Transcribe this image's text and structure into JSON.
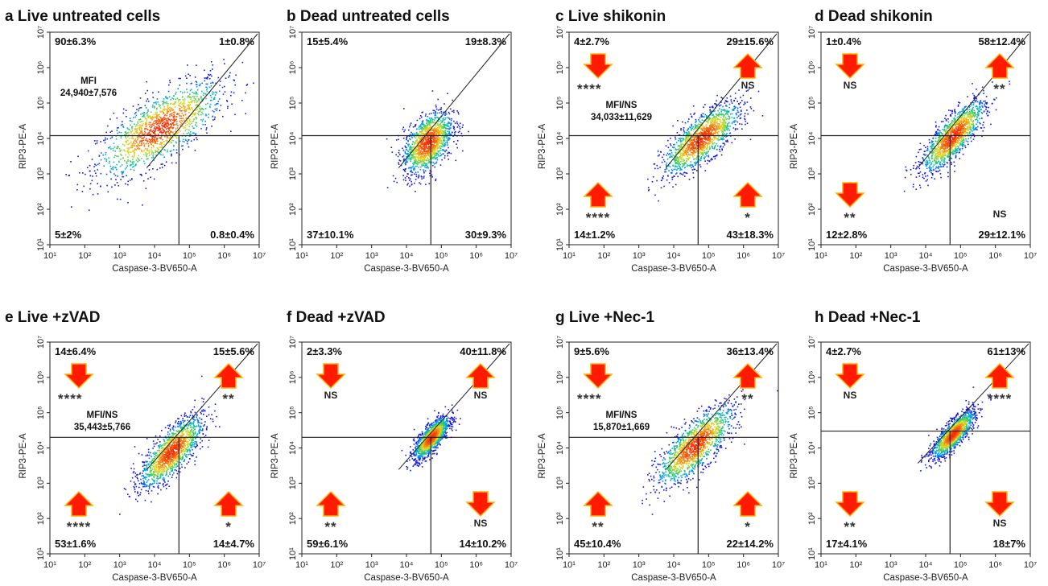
{
  "figure": {
    "colors": {
      "arrow_fill": "#ff1a00",
      "arrow_edge": "#ffb000",
      "density_low": "#1a1aff",
      "density_mid": "#22cc88",
      "density_high": "#ff3300"
    },
    "x_axis_label": "Caspase-3-BV650-A",
    "y_axis_label": "RIP3-PE-A",
    "tick_labels": [
      "10¹",
      "10²",
      "10³",
      "10⁴",
      "10⁵",
      "10⁶",
      "10⁷"
    ]
  },
  "chart_data": [
    {
      "panel": "a",
      "type": "scatter",
      "title": "a Live untreated cells",
      "xlabel": "Caspase-3-BV650-A",
      "ylabel": "RIP3-PE-A",
      "xscale": "log",
      "yscale": "log",
      "xlim": [
        10,
        10000000
      ],
      "ylim": [
        10,
        10000000
      ],
      "gate": {
        "x": 50000,
        "y": 12000
      },
      "quadrants": {
        "UL": "90±6.3%",
        "UR": "1±0.8%",
        "LL": "5±2%",
        "LR": "0.8±0.4%"
      },
      "mfi": [
        "MFI",
        "24,940±7,576"
      ],
      "significance": {},
      "arrows": {},
      "population": {
        "cx": 14000,
        "cy": 20000,
        "rx": 0.9,
        "ry": 0.85,
        "tilt": 0.55
      }
    },
    {
      "panel": "b",
      "type": "scatter",
      "title": "b Dead untreated cells",
      "xlabel": "Caspase-3-BV650-A",
      "ylabel": "RIP3-PE-A",
      "xscale": "log",
      "yscale": "log",
      "xlim": [
        10,
        10000000
      ],
      "ylim": [
        10,
        10000000
      ],
      "gate": {
        "x": 50000,
        "y": 12000
      },
      "quadrants": {
        "UL": "15±5.4%",
        "UR": "19±8.3%",
        "LL": "37±10.1%",
        "LR": "30±9.3%"
      },
      "mfi": [],
      "significance": {},
      "arrows": {},
      "population": {
        "cx": 40000,
        "cy": 8000,
        "rx": 0.35,
        "ry": 0.7,
        "tilt": 0.6
      }
    },
    {
      "panel": "c",
      "type": "scatter",
      "title": "c Live shikonin",
      "xlabel": "Caspase-3-BV650-A",
      "ylabel": "RIP3-PE-A",
      "xscale": "log",
      "yscale": "log",
      "xlim": [
        10,
        10000000
      ],
      "ylim": [
        10,
        10000000
      ],
      "gate": {
        "x": 50000,
        "y": 12000
      },
      "quadrants": {
        "UL": "4±2.7%",
        "UR": "29±15.6%",
        "LL": "14±1.2%",
        "LR": "43±18.3%"
      },
      "mfi": [
        "MFI/NS",
        "34,033±11,629"
      ],
      "significance": {
        "UL": "****",
        "UR": "NS",
        "LL": "****",
        "LR": "*"
      },
      "arrows": {
        "UL": "down",
        "UR": "up",
        "LL": "up",
        "LR": "up"
      },
      "population": {
        "cx": 60000,
        "cy": 10000,
        "rx": 0.55,
        "ry": 0.6,
        "tilt": 0.7
      }
    },
    {
      "panel": "d",
      "type": "scatter",
      "title": "d Dead shikonin",
      "xlabel": "Caspase-3-BV650-A",
      "ylabel": "RIP3-PE-A",
      "xscale": "log",
      "yscale": "log",
      "xlim": [
        10,
        10000000
      ],
      "ylim": [
        10,
        10000000
      ],
      "gate": {
        "x": 50000,
        "y": 12000
      },
      "quadrants": {
        "UL": "1±0.4%",
        "UR": "58±12.4%",
        "LL": "12±2.8%",
        "LR": "29±12.1%"
      },
      "mfi": [],
      "significance": {
        "UL": "NS",
        "UR": "**",
        "LL": "**",
        "LR": "NS"
      },
      "arrows": {
        "UL": "down",
        "UR": "up",
        "LL": "down"
      },
      "population": {
        "cx": 60000,
        "cy": 12000,
        "rx": 0.45,
        "ry": 0.55,
        "tilt": 0.9
      }
    },
    {
      "panel": "e",
      "type": "scatter",
      "title": "e Live +zVAD",
      "xlabel": "Caspase-3-BV650-A",
      "ylabel": "RIP3-PE-A",
      "xscale": "log",
      "yscale": "log",
      "xlim": [
        10,
        10000000
      ],
      "ylim": [
        10,
        10000000
      ],
      "gate": {
        "x": 50000,
        "y": 20000
      },
      "quadrants": {
        "UL": "14±6.4%",
        "UR": "15±5.6%",
        "LL": "53±1.6%",
        "LR": "14±4.7%"
      },
      "mfi": [
        "MFI/NS",
        "35,443±5,766"
      ],
      "significance": {
        "UL": "****",
        "UR": "**",
        "LL": "****",
        "LR": "*"
      },
      "arrows": {
        "UL": "down",
        "UR": "up",
        "LL": "up",
        "LR": "up"
      },
      "population": {
        "cx": 30000,
        "cy": 8000,
        "rx": 0.45,
        "ry": 0.6,
        "tilt": 0.85
      }
    },
    {
      "panel": "f",
      "type": "scatter",
      "title": "f Dead +zVAD",
      "xlabel": "Caspase-3-BV650-A",
      "ylabel": "RIP3-PE-A",
      "xscale": "log",
      "yscale": "log",
      "xlim": [
        10,
        10000000
      ],
      "ylim": [
        10,
        10000000
      ],
      "gate": {
        "x": 50000,
        "y": 20000
      },
      "quadrants": {
        "UL": "2±3.3%",
        "UR": "40±11.8%",
        "LL": "59±6.1%",
        "LR": "14±10.2%"
      },
      "mfi": [],
      "significance": {
        "UL": "NS",
        "UR": "NS",
        "LL": "**",
        "LR": "NS"
      },
      "arrows": {
        "UL": "down",
        "UR": "up",
        "LL": "up",
        "LR": "down"
      },
      "population": {
        "cx": 50000,
        "cy": 20000,
        "rx": 0.25,
        "ry": 0.35,
        "tilt": 0.9
      }
    },
    {
      "panel": "g",
      "type": "scatter",
      "title": "g Live +Nec-1",
      "xlabel": "Caspase-3-BV650-A",
      "ylabel": "RIP3-PE-A",
      "xscale": "log",
      "yscale": "log",
      "xlim": [
        10,
        10000000
      ],
      "ylim": [
        10,
        10000000
      ],
      "gate": {
        "x": 50000,
        "y": 20000
      },
      "quadrants": {
        "UL": "9±5.6%",
        "UR": "36±13.4%",
        "LL": "45±10.4%",
        "LR": "22±14.2%"
      },
      "mfi": [
        "MFI/NS",
        "15,870±1,669"
      ],
      "significance": {
        "UL": "****",
        "UR": "**",
        "LL": "**",
        "LR": "*"
      },
      "arrows": {
        "UL": "down",
        "UR": "up",
        "LL": "up",
        "LR": "up"
      },
      "population": {
        "cx": 40000,
        "cy": 12000,
        "rx": 0.55,
        "ry": 0.65,
        "tilt": 0.8
      }
    },
    {
      "panel": "h",
      "type": "scatter",
      "title": "h Dead +Nec-1",
      "xlabel": "Caspase-3-BV650-A",
      "ylabel": "RIP3-PE-A",
      "xscale": "log",
      "yscale": "log",
      "xlim": [
        10,
        10000000
      ],
      "ylim": [
        10,
        10000000
      ],
      "gate": {
        "x": 50000,
        "y": 30000
      },
      "quadrants": {
        "UL": "4±2.7%",
        "UR": "61±13%",
        "LL": "17±4.1%",
        "LR": "18±7%"
      },
      "mfi": [],
      "significance": {
        "UL": "NS",
        "UR": "****",
        "LL": "**",
        "LR": "NS"
      },
      "arrows": {
        "UL": "down",
        "UR": "up",
        "LL": "down",
        "LR": "down"
      },
      "population": {
        "cx": 60000,
        "cy": 25000,
        "rx": 0.3,
        "ry": 0.35,
        "tilt": 0.9
      }
    }
  ]
}
